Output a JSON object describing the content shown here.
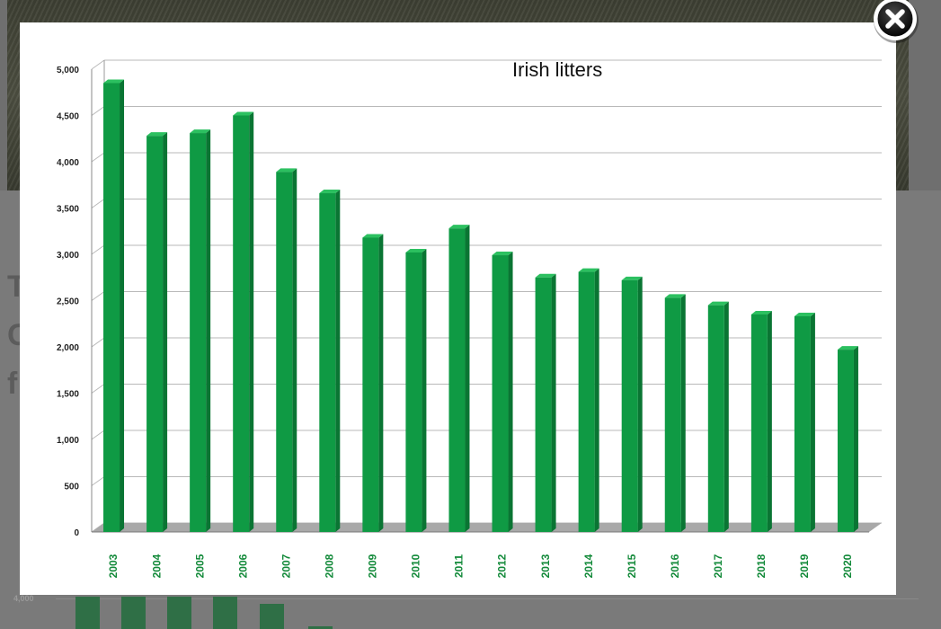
{
  "background_page": {
    "heading_letters": [
      "T",
      "C",
      "f"
    ],
    "partial_axis_tick": "4,000"
  },
  "modal": {
    "close_icon": "close-icon"
  },
  "chart_data": {
    "type": "bar",
    "title": "Irish litters",
    "xlabel": "",
    "ylabel": "",
    "categories": [
      "2003",
      "2004",
      "2005",
      "2006",
      "2007",
      "2008",
      "2009",
      "2010",
      "2011",
      "2012",
      "2013",
      "2014",
      "2015",
      "2016",
      "2017",
      "2018",
      "2019",
      "2020"
    ],
    "values": [
      4850,
      4280,
      4310,
      4500,
      3890,
      3660,
      3180,
      3020,
      3280,
      2990,
      2750,
      2810,
      2720,
      2530,
      2450,
      2350,
      2330,
      1970
    ],
    "ylim": [
      0,
      5000
    ],
    "yticks": [
      "0",
      "500",
      "1,000",
      "1,500",
      "2,000",
      "2,500",
      "3,000",
      "3,500",
      "4,000",
      "4,500",
      "5,000"
    ],
    "grid": true,
    "colors": {
      "bar": "#0f9a44",
      "bar_side": "#0a7533",
      "bar_top": "#2cc060",
      "tick_x": "#138a3a",
      "grid": "#b9b9b9"
    }
  }
}
